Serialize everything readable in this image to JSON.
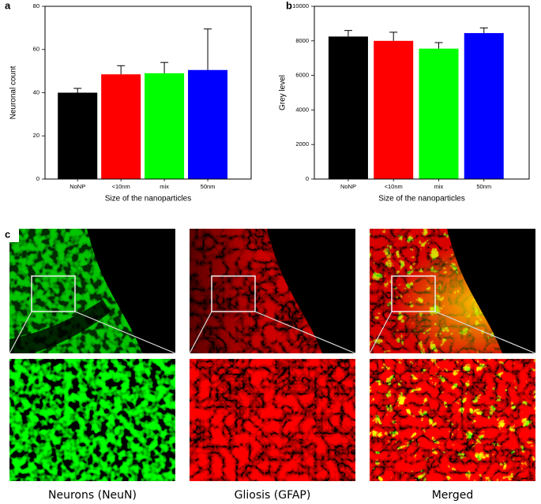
{
  "chart_data": [
    {
      "type": "bar",
      "label": "a",
      "x_label": "Size of the nanoparticles",
      "y_label": "Neuronal count",
      "categories": [
        "NoNP",
        "<10nm",
        "mix",
        "50nm"
      ],
      "values": [
        40,
        48.5,
        49,
        50.5
      ],
      "errors": [
        2,
        4,
        5,
        19
      ],
      "colors": [
        "#000000",
        "#ff0000",
        "#00ff00",
        "#0000ff"
      ],
      "ylim": [
        0,
        80
      ],
      "yticks": [
        0,
        20,
        40,
        60,
        80
      ]
    },
    {
      "type": "bar",
      "label": "b",
      "x_label": "Size of the nanoparticles",
      "y_label": "Grey level",
      "categories": [
        "NoNP",
        "<10nm",
        "mix",
        "50nm"
      ],
      "values": [
        8250,
        8000,
        7550,
        8450
      ],
      "errors": [
        350,
        500,
        350,
        300
      ],
      "colors": [
        "#000000",
        "#ff0000",
        "#00ff00",
        "#0000ff"
      ],
      "ylim": [
        0,
        10000
      ],
      "yticks": [
        0,
        2000,
        4000,
        6000,
        8000,
        10000
      ]
    }
  ],
  "panel_c": {
    "label": "c",
    "captions": [
      "Neurons (NeuN)",
      "Gliosis (GFAP)",
      "Merged"
    ]
  }
}
